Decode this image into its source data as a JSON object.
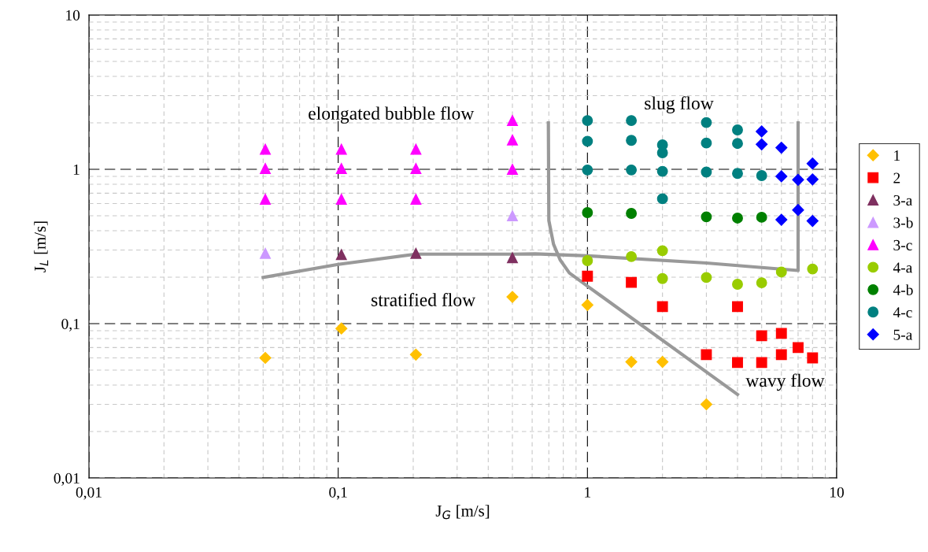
{
  "chart_data": {
    "type": "scatter",
    "xlabel": "J$_{G}$ [m/s]",
    "ylabel": "J$_{L}$ [m/s]",
    "log": "xy",
    "grid": true,
    "legend": "right",
    "xlim": [
      0.01,
      10
    ],
    "ylim": [
      0.01,
      10
    ],
    "xticks": [
      {
        "value": 0.01,
        "label": "0,01"
      },
      {
        "value": 0.1,
        "label": "0,1"
      },
      1,
      10
    ],
    "yticks": [
      {
        "value": 0.01,
        "label": "0,01"
      },
      {
        "value": 0.1,
        "label": "0,1"
      },
      1,
      10
    ],
    "annotations": [
      "elongated bubble flow",
      "slug flow",
      "stratified flow",
      "wavy flow"
    ],
    "series": [
      {
        "name": "1",
        "color": "#ffc000",
        "marker": "diamond",
        "x": [
          0.051,
          0.103,
          0.205,
          0.5,
          1,
          1.5,
          2,
          3
        ],
        "values": [
          0.06,
          0.093,
          0.063,
          0.149,
          0.132,
          0.0565,
          0.0565,
          0.03
        ]
      },
      {
        "name": "2",
        "color": "#ff0000",
        "marker": "square",
        "x": [
          1,
          1.5,
          2,
          4,
          3,
          4,
          5,
          5,
          6,
          6,
          7,
          8
        ],
        "values": [
          0.203,
          0.185,
          0.129,
          0.129,
          0.063,
          0.056,
          0.056,
          0.0835,
          0.0865,
          0.063,
          0.07,
          0.06
        ]
      },
      {
        "name": "3-a",
        "color": "#7f3060",
        "marker": "triangle",
        "x": [
          0.103,
          0.205,
          0.5
        ],
        "values": [
          0.28,
          0.285,
          0.267
        ]
      },
      {
        "name": "3-b",
        "color": "#cc99ff",
        "marker": "triangle",
        "x": [
          0.051,
          0.5
        ],
        "values": [
          0.285,
          0.5
        ]
      },
      {
        "name": "3-c",
        "color": "#ff00ff",
        "marker": "triangle",
        "x": [
          0.051,
          0.051,
          0.051,
          0.103,
          0.103,
          0.103,
          0.205,
          0.205,
          0.205,
          0.5,
          0.5,
          0.5
        ],
        "values": [
          1.35,
          1.01,
          0.64,
          1.35,
          1.01,
          0.64,
          1.35,
          1.01,
          0.64,
          2.07,
          1.55,
          1.0
        ]
      },
      {
        "name": "4-a",
        "color": "#99cc00",
        "marker": "circle",
        "x": [
          1,
          1.5,
          2,
          2,
          3,
          4,
          5,
          6,
          8
        ],
        "values": [
          0.256,
          0.272,
          0.297,
          0.196,
          0.199,
          0.18,
          0.184,
          0.216,
          0.226
        ]
      },
      {
        "name": "4-b",
        "color": "#008000",
        "marker": "circle",
        "x": [
          1,
          1.5,
          3,
          4,
          5
        ],
        "values": [
          0.524,
          0.518,
          0.492,
          0.483,
          0.489
        ]
      },
      {
        "name": "4-c",
        "color": "#008080",
        "marker": "circle",
        "x": [
          1,
          1,
          1,
          1.5,
          1.5,
          1.5,
          2,
          2,
          2,
          2,
          3,
          3,
          3,
          4,
          4,
          4,
          5
        ],
        "values": [
          2.07,
          1.52,
          0.99,
          2.07,
          1.54,
          0.99,
          1.44,
          1.28,
          0.97,
          0.645,
          2.01,
          1.48,
          0.96,
          1.8,
          1.47,
          0.94,
          0.91
        ]
      },
      {
        "name": "5-a",
        "color": "#0000ff",
        "marker": "diamond",
        "x": [
          5,
          5,
          6,
          6,
          6,
          7,
          7,
          8,
          8,
          8
        ],
        "values": [
          1.76,
          1.45,
          1.38,
          0.9,
          0.471,
          0.855,
          0.545,
          1.09,
          0.86,
          0.463
        ]
      },
      {
        "type": "line",
        "color": "#999999",
        "marker": "none",
        "x": [
          0.05,
          0.1,
          0.205,
          0.5,
          0.617,
          1,
          3,
          7,
          7
        ],
        "values": [
          0.199,
          0.242,
          0.282,
          0.282,
          0.283,
          0.275,
          0.247,
          0.221,
          2.0
        ]
      },
      {
        "type": "line",
        "color": "#999999",
        "marker": "none",
        "x": [
          0.697,
          0.7,
          0.731,
          0.777,
          0.846,
          1,
          4
        ],
        "values": [
          2.0,
          0.466,
          0.327,
          0.259,
          0.213,
          0.175,
          0.0348
        ]
      }
    ]
  }
}
